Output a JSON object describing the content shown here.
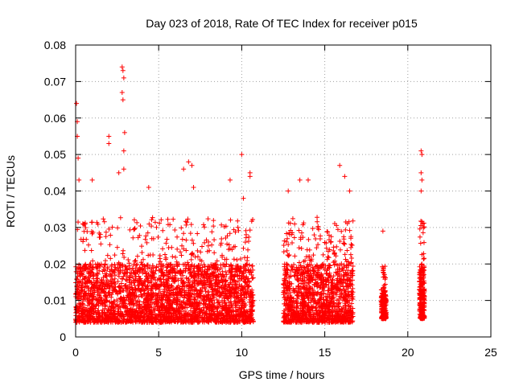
{
  "chart_data": {
    "type": "scatter",
    "title": "Day 023 of 2018, Rate Of TEC Index for receiver p015",
    "xlabel": "GPS time / hours",
    "ylabel": "ROTI / TECUs",
    "xlim": [
      0,
      25
    ],
    "ylim": [
      0,
      0.08
    ],
    "x_ticks": [
      0,
      5,
      10,
      15,
      20,
      25
    ],
    "x_tick_labels": [
      "0",
      "5",
      "10",
      "15",
      "20",
      "25"
    ],
    "y_ticks": [
      0,
      0.01,
      0.02,
      0.03,
      0.04,
      0.05,
      0.06,
      0.07,
      0.08
    ],
    "y_tick_labels": [
      "0",
      "0.01",
      "0.02",
      "0.03",
      "0.04",
      "0.05",
      "0.06",
      "0.07",
      "0.08"
    ],
    "grid": true,
    "marker": "+",
    "series": [
      {
        "color": "#ff0000",
        "segments": [
          {
            "x_range": [
              0.0,
              10.7
            ],
            "typical": [
              0.004,
              0.02
            ]
          },
          {
            "x_range": [
              12.5,
              16.7
            ],
            "typical": [
              0.004,
              0.02
            ]
          },
          {
            "x_range": [
              18.4,
              18.7
            ],
            "typical": [
              0.005,
              0.013
            ]
          },
          {
            "x_range": [
              20.7,
              21.0
            ],
            "typical": [
              0.005,
              0.02
            ]
          }
        ],
        "peaks": [
          {
            "x": 0.05,
            "y": 0.064
          },
          {
            "x": 0.1,
            "y": 0.059
          },
          {
            "x": 0.1,
            "y": 0.055
          },
          {
            "x": 0.15,
            "y": 0.049
          },
          {
            "x": 0.2,
            "y": 0.043
          },
          {
            "x": 1.0,
            "y": 0.043
          },
          {
            "x": 2.0,
            "y": 0.055
          },
          {
            "x": 2.0,
            "y": 0.053
          },
          {
            "x": 2.6,
            "y": 0.045
          },
          {
            "x": 2.8,
            "y": 0.074
          },
          {
            "x": 2.85,
            "y": 0.073
          },
          {
            "x": 2.9,
            "y": 0.071
          },
          {
            "x": 2.8,
            "y": 0.067
          },
          {
            "x": 2.85,
            "y": 0.065
          },
          {
            "x": 2.95,
            "y": 0.056
          },
          {
            "x": 2.9,
            "y": 0.051
          },
          {
            "x": 2.9,
            "y": 0.046
          },
          {
            "x": 4.4,
            "y": 0.041
          },
          {
            "x": 6.5,
            "y": 0.046
          },
          {
            "x": 6.8,
            "y": 0.048
          },
          {
            "x": 7.0,
            "y": 0.047
          },
          {
            "x": 7.1,
            "y": 0.041
          },
          {
            "x": 9.3,
            "y": 0.043
          },
          {
            "x": 10.0,
            "y": 0.05
          },
          {
            "x": 10.1,
            "y": 0.038
          },
          {
            "x": 10.5,
            "y": 0.045
          },
          {
            "x": 10.5,
            "y": 0.044
          },
          {
            "x": 12.8,
            "y": 0.04
          },
          {
            "x": 13.5,
            "y": 0.043
          },
          {
            "x": 14.0,
            "y": 0.043
          },
          {
            "x": 15.9,
            "y": 0.047
          },
          {
            "x": 16.2,
            "y": 0.044
          },
          {
            "x": 16.5,
            "y": 0.04
          },
          {
            "x": 18.5,
            "y": 0.029
          },
          {
            "x": 20.8,
            "y": 0.051
          },
          {
            "x": 20.85,
            "y": 0.05
          },
          {
            "x": 20.8,
            "y": 0.045
          },
          {
            "x": 20.85,
            "y": 0.043
          },
          {
            "x": 20.8,
            "y": 0.04
          }
        ]
      }
    ]
  }
}
